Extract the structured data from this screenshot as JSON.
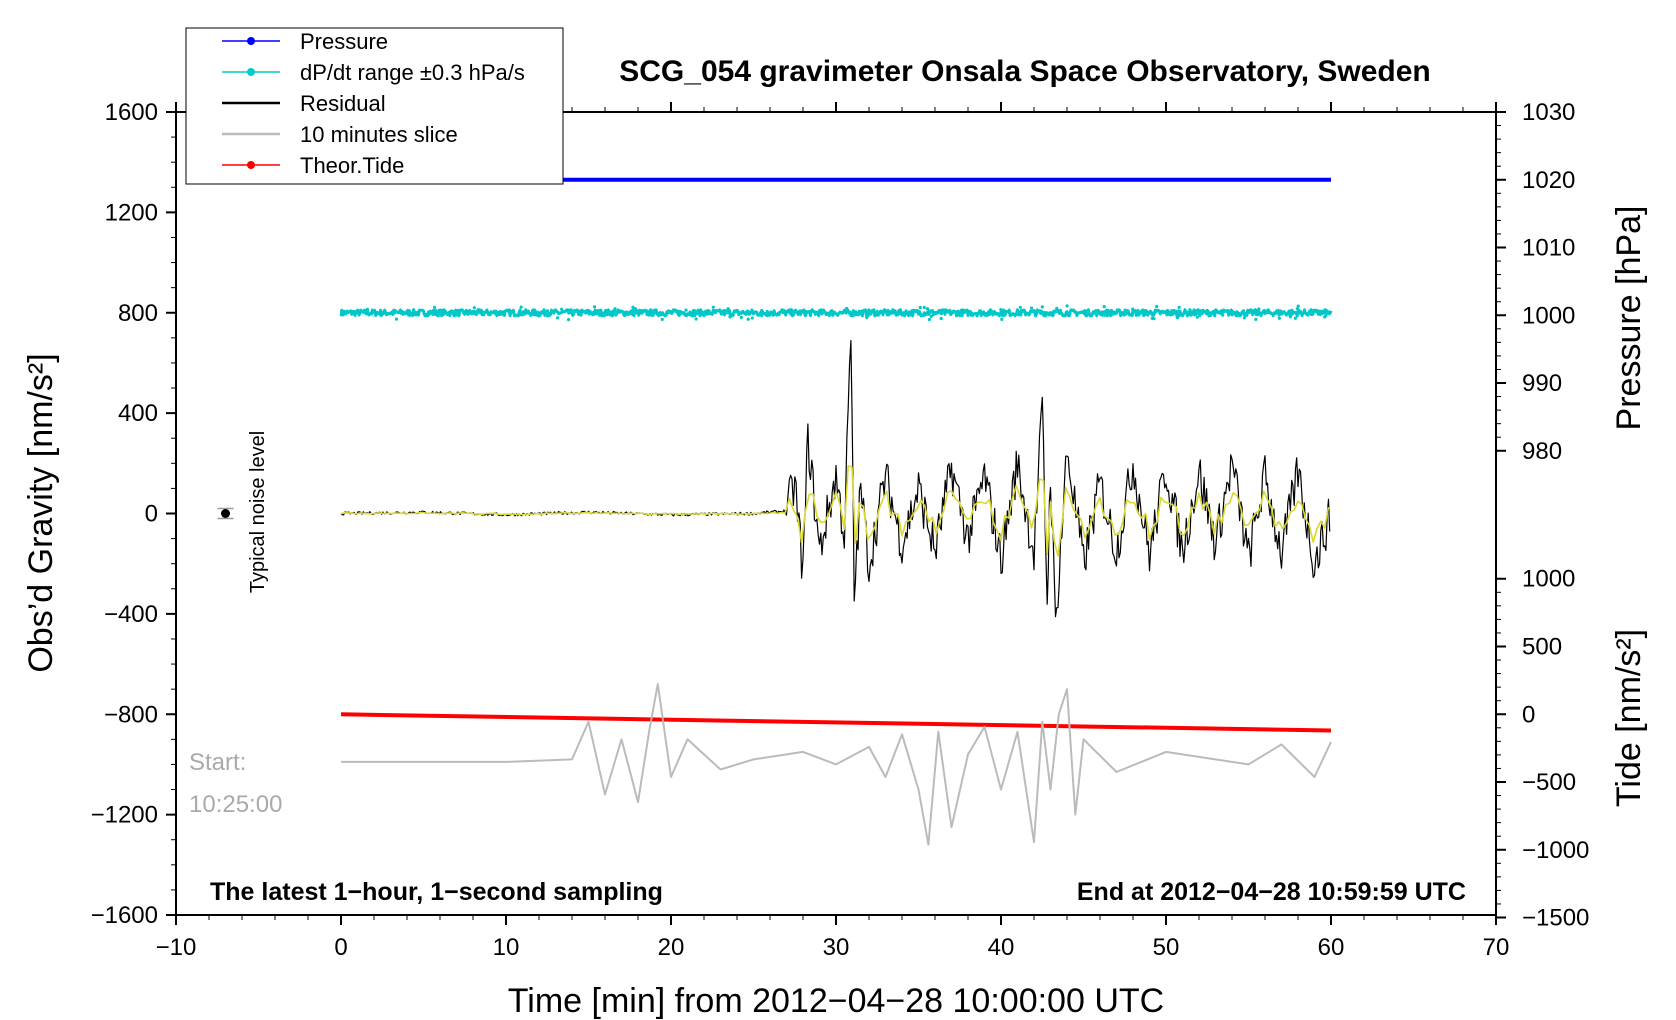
{
  "chart_data": {
    "type": "line",
    "title": "SCG_054 gravimeter Onsala Space Observatory, Sweden",
    "xlabel": "Time [min] from 2012−04−28 10:00:00 UTC",
    "ylabel_left": "Obs’d Gravity [nm/s²]",
    "ylabel_right_pressure": "Pressure [hPa]",
    "ylabel_right_tide": "Tide [nm/s²]",
    "xlim": [
      -10,
      70
    ],
    "ylim": [
      -1600,
      1600
    ],
    "xticks": [
      "−10",
      "0",
      "10",
      "20",
      "30",
      "40",
      "50",
      "60",
      "70"
    ],
    "yticks_left": [
      "1600",
      "1200",
      "800",
      "400",
      "0",
      "−400",
      "−800",
      "−1200",
      "−1600"
    ],
    "pressure_axis": {
      "ticks": [
        "1030",
        "1020",
        "1010",
        "1000",
        "990",
        "980"
      ],
      "range": [
        980,
        1030
      ]
    },
    "tide_axis": {
      "ticks": [
        "1000",
        "500",
        "0",
        "−500",
        "−1000",
        "−1500"
      ],
      "range": [
        -1500,
        1000
      ]
    },
    "grid": false,
    "legend_position": "top-left",
    "legend": [
      {
        "name": "Pressure",
        "color": "#0000ff",
        "style": "line-dot"
      },
      {
        "name": "dP/dt range ±0.3 hPa/s",
        "color": "#00cccc",
        "style": "line-dot"
      },
      {
        "name": "Residual",
        "color": "#000000",
        "style": "line"
      },
      {
        "name": "10 minutes slice",
        "color": "#bbbbbb",
        "style": "line"
      },
      {
        "name": "Theor.Tide",
        "color": "#ff0000",
        "style": "line-dot"
      }
    ],
    "series": [
      {
        "name": "Pressure",
        "axis": "pressure_hPa",
        "x": [
          0,
          60
        ],
        "values": [
          1020.0,
          1020.0
        ]
      },
      {
        "name": "dP/dt range ±0.3 hPa/s",
        "axis": "gravity_offset",
        "x": [
          0,
          60
        ],
        "values": [
          800,
          800
        ]
      },
      {
        "name": "Residual",
        "axis": "gravity",
        "x": [
          0,
          5,
          10,
          15,
          20,
          25,
          27,
          27.5,
          28,
          28.3,
          29,
          30,
          30.5,
          30.9,
          31.1,
          31.5,
          32,
          33,
          34,
          35,
          36,
          37,
          38,
          39,
          40,
          41,
          42,
          42.5,
          42.8,
          43.0,
          43.3,
          44,
          45,
          46,
          47,
          48,
          49,
          50,
          51,
          52,
          53,
          54,
          55,
          56,
          57,
          58,
          59,
          60
        ],
        "values": [
          0,
          5,
          -5,
          5,
          -5,
          0,
          10,
          120,
          -230,
          300,
          -150,
          150,
          -80,
          700,
          -330,
          100,
          -200,
          150,
          -120,
          100,
          -150,
          180,
          -100,
          150,
          -180,
          200,
          -160,
          420,
          -350,
          180,
          -450,
          250,
          -200,
          120,
          -150,
          200,
          -160,
          180,
          -150,
          170,
          -120,
          200,
          -180,
          150,
          -160,
          170,
          -200,
          0
        ]
      },
      {
        "name": "10 minutes slice",
        "axis": "gravity_offset",
        "x": [
          0,
          5,
          10,
          14,
          15,
          16,
          17,
          18,
          18.7,
          19.2,
          20,
          21,
          23,
          25,
          28,
          30,
          32,
          33,
          34,
          35,
          35.6,
          36.2,
          37,
          38,
          39,
          40,
          41,
          42,
          42.5,
          43,
          43.5,
          44,
          44.5,
          45,
          47,
          50,
          55,
          57,
          59,
          60
        ],
        "values": [
          -990,
          -990,
          -990,
          -980,
          -830,
          -1120,
          -900,
          -1150,
          -860,
          -680,
          -1050,
          -900,
          -1020,
          -980,
          -950,
          -1000,
          -930,
          -1050,
          -880,
          -1100,
          -1320,
          -870,
          -1250,
          -960,
          -850,
          -1100,
          -870,
          -1310,
          -830,
          -1100,
          -800,
          -700,
          -1200,
          -900,
          -1030,
          -950,
          -1000,
          -920,
          -1050,
          -910
        ]
      },
      {
        "name": "Theor.Tide",
        "axis": "tide",
        "x": [
          0,
          60
        ],
        "values": [
          0,
          -120
        ]
      },
      {
        "name": "Typical noise level",
        "axis": "gravity",
        "x": [
          -7
        ],
        "values": [
          0
        ]
      }
    ],
    "annotations": {
      "noise_label": "Typical noise level",
      "start_label": "Start:",
      "start_time": "10:25:00",
      "footer_left": "The latest 1−hour, 1−second sampling",
      "footer_right": "End at 2012−04−28 10:59:59 UTC"
    }
  }
}
